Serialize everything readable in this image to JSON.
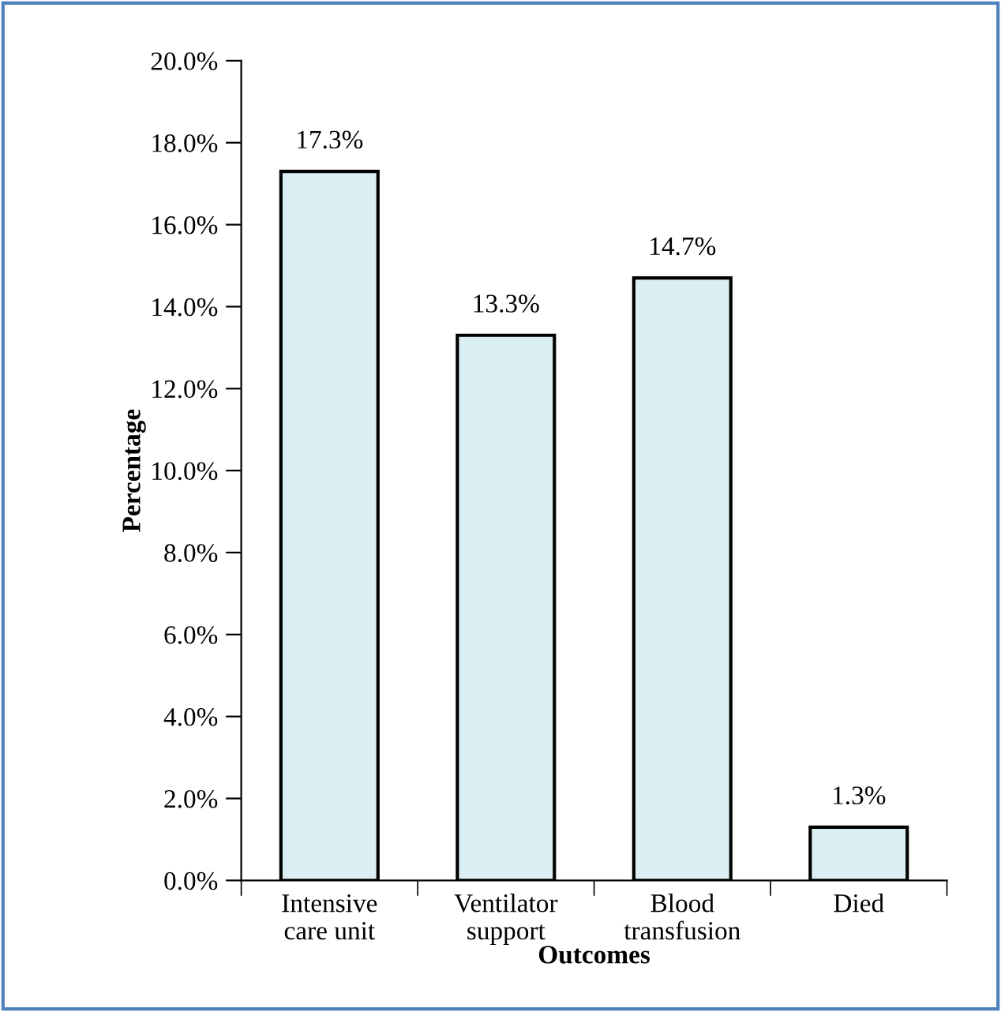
{
  "chart_data": {
    "type": "bar",
    "xlabel": "Outcomes",
    "ylabel": "Percentage",
    "categories": [
      "Intensive\ncare unit",
      "Ventilator\nsupport",
      "Blood\ntransfusion",
      "Died"
    ],
    "values": [
      17.3,
      13.3,
      14.7,
      1.3
    ],
    "value_labels": [
      "17.3%",
      "13.3%",
      "14.7%",
      "1.3%"
    ],
    "color": "#dbeef4",
    "ylim": [
      0,
      20
    ],
    "yticks": [
      {
        "value": 0,
        "label": "0.0%"
      },
      {
        "value": 2,
        "label": "2.0%"
      },
      {
        "value": 4,
        "label": "4.0%"
      },
      {
        "value": 6,
        "label": "6.0%"
      },
      {
        "value": 8,
        "label": "8.0%"
      },
      {
        "value": 10,
        "label": "10.0%"
      },
      {
        "value": 12,
        "label": "12.0%"
      },
      {
        "value": 14,
        "label": "14.0%"
      },
      {
        "value": 16,
        "label": "16.0%"
      },
      {
        "value": 18,
        "label": "18.0%"
      },
      {
        "value": 20,
        "label": "20.0%"
      }
    ],
    "grid": false
  }
}
